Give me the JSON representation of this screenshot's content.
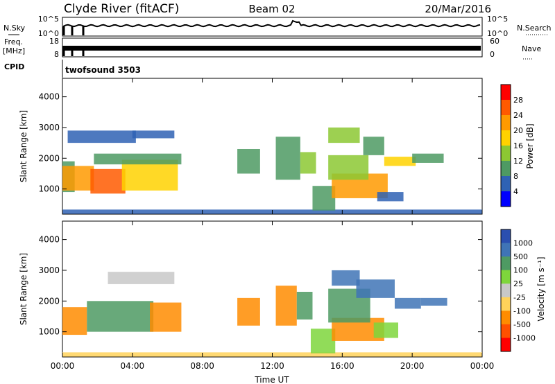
{
  "header": {
    "title_left": "Clyde River (fitACF)",
    "title_center": "Beam 02",
    "title_right": "20/Mar/2016"
  },
  "params": {
    "nsky_label": "N.Sky",
    "nsearch_label": "N.Search",
    "freq_label_1": "Freq.",
    "freq_label_2": "[MHz]",
    "nave_label": "Nave",
    "cpid_label": "CPID",
    "cpid_value": "twofsound 3503",
    "nsky_ticks": [
      "10^5",
      "10^0"
    ],
    "nsearch_ticks": [
      "10^5",
      "10^0"
    ],
    "freq_ticks": [
      "18",
      "8"
    ],
    "nave_ticks": [
      "60",
      "0"
    ]
  },
  "chart_data": [
    {
      "type": "heatmap",
      "title": "",
      "xlabel": "",
      "ylabel": "Slant Range [km]",
      "colorbar_label": "Power [dB]",
      "colorbar_ticks": [
        "28",
        "24",
        "20",
        "16",
        "12",
        "8",
        "4"
      ],
      "colorbar_colors": [
        "#ff0000",
        "#ff5a00",
        "#ff9a00",
        "#ffd200",
        "#8cc832",
        "#4e9a63",
        "#2f62b4",
        "#0000ff"
      ],
      "xlim": [
        0,
        24
      ],
      "ylim": [
        180,
        4600
      ],
      "yticks": [
        1000,
        2000,
        3000,
        4000
      ],
      "ytick_labels": [
        "1000",
        "2000",
        "3000",
        "4000"
      ],
      "patches": [
        {
          "x": [
            0.0,
            0.7
          ],
          "y": [
            900,
            1900
          ],
          "value": 10
        },
        {
          "x": [
            0.0,
            1.8
          ],
          "y": [
            950,
            1750
          ],
          "value": 20
        },
        {
          "x": [
            1.6,
            3.6
          ],
          "y": [
            850,
            1650
          ],
          "value": 26
        },
        {
          "x": [
            3.4,
            6.6
          ],
          "y": [
            950,
            1950
          ],
          "value": 16
        },
        {
          "x": [
            1.8,
            6.8
          ],
          "y": [
            1800,
            2150
          ],
          "value": 9
        },
        {
          "x": [
            0.3,
            4.2
          ],
          "y": [
            2500,
            2900
          ],
          "value": 7
        },
        {
          "x": [
            4.0,
            6.4
          ],
          "y": [
            2650,
            2900
          ],
          "value": 5
        },
        {
          "x": [
            0.0,
            24.0
          ],
          "y": [
            190,
            330
          ],
          "value": 6
        },
        {
          "x": [
            10.0,
            11.3
          ],
          "y": [
            1500,
            2300
          ],
          "value": 9
        },
        {
          "x": [
            12.2,
            13.6
          ],
          "y": [
            1300,
            2700
          ],
          "value": 11
        },
        {
          "x": [
            13.6,
            14.5
          ],
          "y": [
            1500,
            2200
          ],
          "value": 12
        },
        {
          "x": [
            14.3,
            15.6
          ],
          "y": [
            300,
            1100
          ],
          "value": 8
        },
        {
          "x": [
            15.4,
            18.6
          ],
          "y": [
            700,
            1500
          ],
          "value": 22
        },
        {
          "x": [
            15.2,
            17.5
          ],
          "y": [
            1300,
            2100
          ],
          "value": 13
        },
        {
          "x": [
            15.2,
            17.0
          ],
          "y": [
            2500,
            3000
          ],
          "value": 14
        },
        {
          "x": [
            17.2,
            18.4
          ],
          "y": [
            2100,
            2700
          ],
          "value": 11
        },
        {
          "x": [
            18.4,
            20.2
          ],
          "y": [
            1750,
            2050
          ],
          "value": 19
        },
        {
          "x": [
            18.0,
            19.5
          ],
          "y": [
            600,
            900
          ],
          "value": 7
        },
        {
          "x": [
            20.0,
            21.8
          ],
          "y": [
            1850,
            2150
          ],
          "value": 9
        }
      ]
    },
    {
      "type": "heatmap",
      "title": "",
      "xlabel": "Time UT",
      "ylabel": "Slant Range [km]",
      "colorbar_label": "Velocity [m s⁻¹]",
      "colorbar_ticks": [
        "1000",
        "500",
        "100",
        "25",
        "-25",
        "-100",
        "-500",
        "-1000"
      ],
      "colorbar_colors": [
        "#2a4fb0",
        "#3f74b6",
        "#4e9a63",
        "#7ed63c",
        "#c8c8c8",
        "#ffd25a",
        "#ff8c00",
        "#ff5000",
        "#ff0000"
      ],
      "xlim": [
        0,
        24
      ],
      "ylim": [
        180,
        4600
      ],
      "yticks": [
        1000,
        2000,
        3000,
        4000
      ],
      "ytick_labels": [
        "1000",
        "2000",
        "3000",
        "4000"
      ],
      "xticks": [
        0,
        4,
        8,
        12,
        16,
        20,
        24
      ],
      "xtick_labels": [
        "00:00",
        "04:00",
        "08:00",
        "12:00",
        "16:00",
        "20:00",
        "00:00"
      ],
      "patches": [
        {
          "x": [
            0.0,
            1.4
          ],
          "y": [
            900,
            1800
          ],
          "value": -300
        },
        {
          "x": [
            1.4,
            5.2
          ],
          "y": [
            1000,
            2000
          ],
          "value": 120
        },
        {
          "x": [
            5.0,
            6.8
          ],
          "y": [
            1000,
            1950
          ],
          "value": -300
        },
        {
          "x": [
            2.6,
            6.4
          ],
          "y": [
            2550,
            2950
          ],
          "value": 0
        },
        {
          "x": [
            0.0,
            24.0
          ],
          "y": [
            190,
            330
          ],
          "value": -80
        },
        {
          "x": [
            10.0,
            11.3
          ],
          "y": [
            1200,
            2100
          ],
          "value": -400
        },
        {
          "x": [
            12.2,
            13.4
          ],
          "y": [
            1200,
            2500
          ],
          "value": -400
        },
        {
          "x": [
            13.4,
            14.3
          ],
          "y": [
            1400,
            2300
          ],
          "value": 200
        },
        {
          "x": [
            14.2,
            15.6
          ],
          "y": [
            300,
            1100
          ],
          "value": 60
        },
        {
          "x": [
            15.4,
            18.4
          ],
          "y": [
            700,
            1450
          ],
          "value": -400
        },
        {
          "x": [
            15.2,
            17.6
          ],
          "y": [
            1300,
            2400
          ],
          "value": 300
        },
        {
          "x": [
            15.4,
            17.0
          ],
          "y": [
            2500,
            3000
          ],
          "value": 600
        },
        {
          "x": [
            16.8,
            19.0
          ],
          "y": [
            2100,
            2700
          ],
          "value": 700
        },
        {
          "x": [
            19.0,
            20.5
          ],
          "y": [
            1750,
            2100
          ],
          "value": 800
        },
        {
          "x": [
            17.8,
            19.2
          ],
          "y": [
            800,
            1300
          ],
          "value": 90
        },
        {
          "x": [
            20.5,
            22.0
          ],
          "y": [
            1850,
            2100
          ],
          "value": 800
        }
      ]
    }
  ],
  "colors": {
    "accent": "#000000"
  }
}
